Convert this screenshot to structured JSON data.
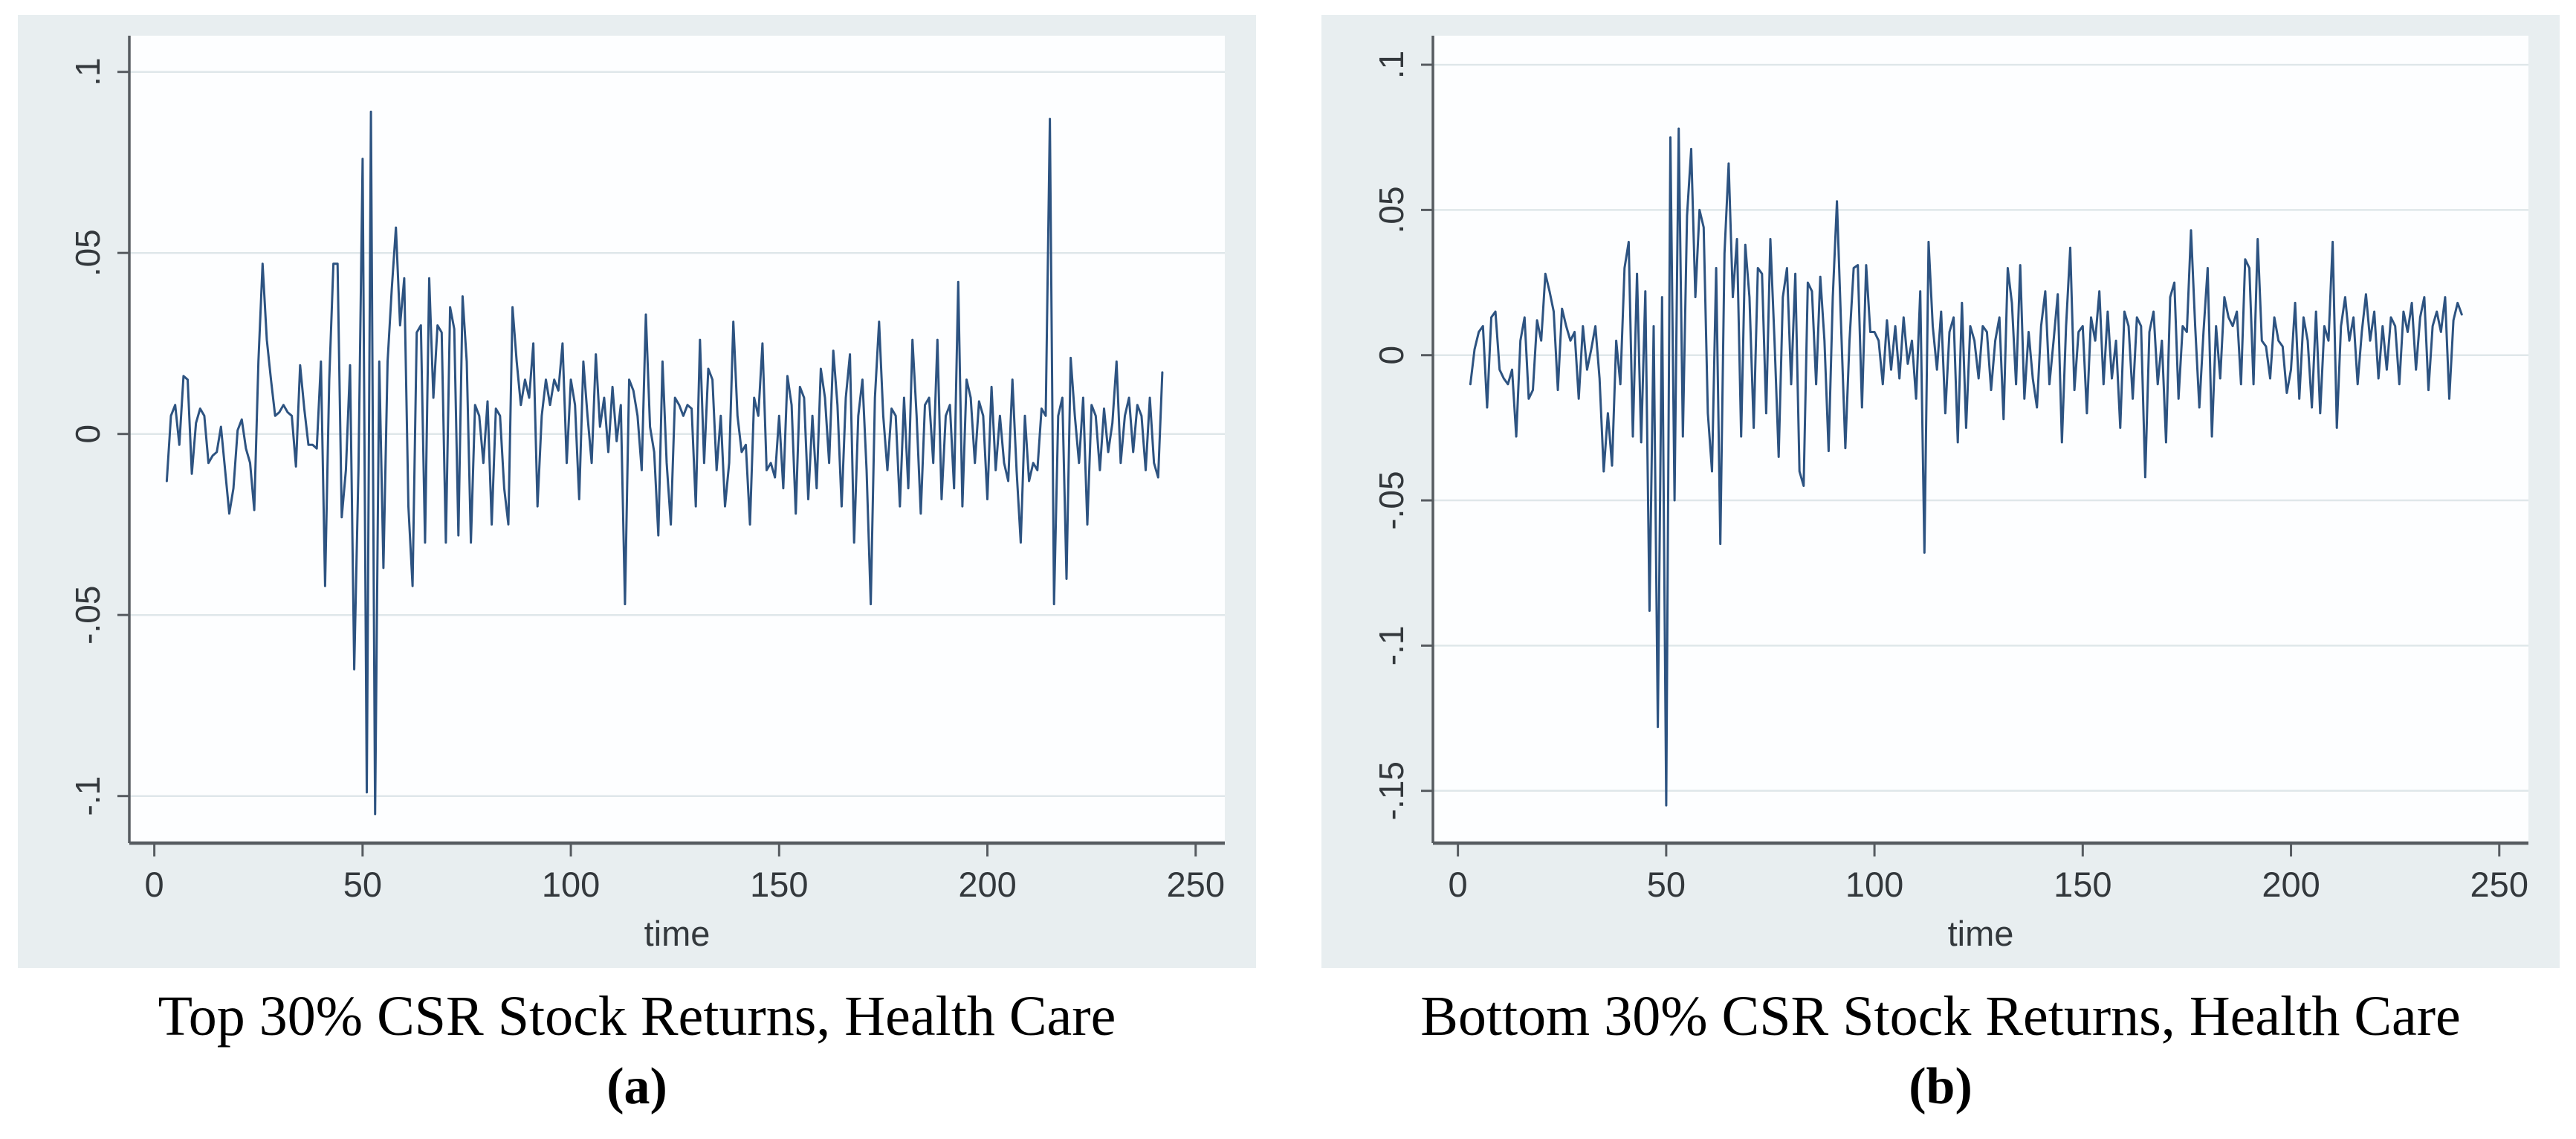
{
  "figure": {
    "panels": [
      {
        "caption": "Top 30% CSR Stock Returns, Health Care",
        "label": "(a)"
      },
      {
        "caption": "Bottom 30% CSR Stock Returns, Health Care",
        "label": "(b)"
      }
    ]
  },
  "colors": {
    "panel_bg": "#e8eef0",
    "plot_bg": "#fdfeff",
    "grid": "#dfe7ea",
    "axis": "#565b60",
    "tick_text": "#33383c",
    "line": "#2d5381"
  },
  "chart_data": [
    {
      "type": "line",
      "title": "Top 30% CSR Stock Returns, Health Care",
      "xlabel": "time",
      "ylabel": "",
      "legend": "none",
      "grid": "horizontal",
      "xlim": [
        -6,
        257
      ],
      "ylim": [
        -0.113,
        0.11
      ],
      "xticks": [
        0,
        50,
        100,
        150,
        200,
        250
      ],
      "ytick_values": [
        0.1,
        0.05,
        0,
        -0.05,
        -0.1
      ],
      "ytick_labels": [
        ".1",
        ".05",
        "0",
        "-.05",
        "-.1"
      ],
      "x_start": 3,
      "x_step": 1,
      "values": [
        -0.013,
        0.005,
        0.008,
        -0.003,
        0.016,
        0.015,
        -0.011,
        0.003,
        0.007,
        0.005,
        -0.008,
        -0.006,
        -0.005,
        0.002,
        -0.01,
        -0.022,
        -0.015,
        0.001,
        0.004,
        -0.004,
        -0.008,
        -0.021,
        0.02,
        0.047,
        0.026,
        0.015,
        0.005,
        0.006,
        0.008,
        0.006,
        0.005,
        -0.009,
        0.019,
        0.007,
        -0.003,
        -0.003,
        -0.004,
        0.02,
        -0.042,
        0.015,
        0.047,
        0.047,
        -0.023,
        -0.01,
        0.019,
        -0.065,
        -0.01,
        0.076,
        -0.099,
        0.089,
        -0.105,
        0.02,
        -0.037,
        0.02,
        0.04,
        0.057,
        0.03,
        0.043,
        -0.02,
        -0.042,
        0.028,
        0.03,
        -0.03,
        0.043,
        0.01,
        0.03,
        0.028,
        -0.03,
        0.035,
        0.029,
        -0.028,
        0.038,
        0.02,
        -0.03,
        0.008,
        0.005,
        -0.008,
        0.009,
        -0.025,
        0.007,
        0.005,
        -0.015,
        -0.025,
        0.035,
        0.02,
        0.008,
        0.015,
        0.01,
        0.025,
        -0.02,
        0.005,
        0.015,
        0.008,
        0.015,
        0.012,
        0.025,
        -0.008,
        0.015,
        0.008,
        -0.018,
        0.02,
        0.005,
        -0.008,
        0.022,
        0.002,
        0.01,
        -0.005,
        0.013,
        -0.002,
        0.008,
        -0.047,
        0.015,
        0.012,
        0.005,
        -0.01,
        0.033,
        0.002,
        -0.005,
        -0.028,
        0.02,
        -0.008,
        -0.025,
        0.01,
        0.008,
        0.005,
        0.008,
        0.007,
        -0.02,
        0.026,
        -0.008,
        0.018,
        0.015,
        -0.01,
        0.005,
        -0.02,
        -0.008,
        0.031,
        0.005,
        -0.005,
        -0.003,
        -0.025,
        0.01,
        0.005,
        0.025,
        -0.01,
        -0.008,
        -0.012,
        0.005,
        -0.015,
        0.016,
        0.008,
        -0.022,
        0.013,
        0.01,
        -0.018,
        0.005,
        -0.015,
        0.018,
        0.01,
        -0.008,
        0.023,
        0.008,
        -0.02,
        0.01,
        0.022,
        -0.03,
        0.005,
        0.015,
        -0.01,
        -0.047,
        0.01,
        0.031,
        0.005,
        -0.01,
        0.007,
        0.005,
        -0.02,
        0.01,
        -0.015,
        0.026,
        0.005,
        -0.022,
        0.008,
        0.01,
        -0.008,
        0.026,
        -0.018,
        0.005,
        0.008,
        -0.015,
        0.042,
        -0.02,
        0.015,
        0.01,
        -0.008,
        0.009,
        0.005,
        -0.018,
        0.013,
        -0.01,
        0.005,
        -0.008,
        -0.013,
        0.015,
        -0.01,
        -0.03,
        0.005,
        -0.013,
        -0.008,
        -0.01,
        0.007,
        0.005,
        0.087,
        -0.047,
        0.005,
        0.01,
        -0.04,
        0.021,
        0.005,
        -0.008,
        0.01,
        -0.025,
        0.008,
        0.005,
        -0.01,
        0.007,
        -0.005,
        0.003,
        0.02,
        -0.008,
        0.005,
        0.01,
        -0.005,
        0.008,
        0.005,
        -0.01,
        0.01,
        -0.008,
        -0.012,
        0.017
      ]
    },
    {
      "type": "line",
      "title": "Bottom 30% CSR Stock Returns, Health Care",
      "xlabel": "time",
      "ylabel": "",
      "legend": "none",
      "grid": "horizontal",
      "xlim": [
        -6,
        257
      ],
      "ylim": [
        -0.168,
        0.11
      ],
      "xticks": [
        0,
        50,
        100,
        150,
        200,
        250
      ],
      "ytick_values": [
        0.1,
        0.05,
        0,
        -0.05,
        -0.1,
        -0.15
      ],
      "ytick_labels": [
        ".1",
        ".05",
        "0",
        "-.05",
        "-.1",
        "-.15"
      ],
      "x_start": 3,
      "x_step": 1,
      "values": [
        -0.01,
        0.002,
        0.008,
        0.01,
        -0.018,
        0.013,
        0.015,
        -0.005,
        -0.008,
        -0.01,
        -0.005,
        -0.028,
        0.005,
        0.013,
        -0.015,
        -0.012,
        0.012,
        0.005,
        0.028,
        0.022,
        0.015,
        -0.012,
        0.016,
        0.01,
        0.005,
        0.008,
        -0.015,
        0.01,
        -0.005,
        0.002,
        0.01,
        -0.008,
        -0.04,
        -0.02,
        -0.038,
        0.005,
        -0.01,
        0.03,
        0.039,
        -0.028,
        0.028,
        -0.03,
        0.022,
        -0.088,
        0.01,
        -0.128,
        0.02,
        -0.155,
        0.075,
        -0.05,
        0.078,
        -0.028,
        0.048,
        0.071,
        0.02,
        0.05,
        0.044,
        -0.02,
        -0.04,
        0.03,
        -0.065,
        0.035,
        0.066,
        0.02,
        0.04,
        -0.028,
        0.038,
        0.02,
        -0.025,
        0.03,
        0.028,
        -0.02,
        0.04,
        0.005,
        -0.035,
        0.02,
        0.03,
        -0.01,
        0.028,
        -0.04,
        -0.045,
        0.025,
        0.022,
        -0.01,
        0.027,
        0.005,
        -0.033,
        0.02,
        0.053,
        0.01,
        -0.032,
        0.005,
        0.03,
        0.031,
        -0.018,
        0.031,
        0.008,
        0.008,
        0.005,
        -0.01,
        0.012,
        -0.005,
        0.01,
        -0.008,
        0.013,
        -0.003,
        0.005,
        -0.015,
        0.022,
        -0.068,
        0.039,
        0.01,
        -0.005,
        0.015,
        -0.02,
        0.008,
        0.013,
        -0.03,
        0.018,
        -0.025,
        0.01,
        0.005,
        -0.008,
        0.01,
        0.008,
        -0.012,
        0.005,
        0.013,
        -0.022,
        0.03,
        0.018,
        -0.01,
        0.031,
        -0.015,
        0.008,
        -0.008,
        -0.018,
        0.01,
        0.022,
        -0.01,
        0.005,
        0.021,
        -0.03,
        0.01,
        0.037,
        -0.012,
        0.008,
        0.01,
        -0.02,
        0.013,
        0.005,
        0.022,
        -0.01,
        0.015,
        -0.008,
        0.005,
        -0.025,
        0.015,
        0.01,
        -0.015,
        0.013,
        0.01,
        -0.042,
        0.008,
        0.015,
        -0.01,
        0.005,
        -0.03,
        0.02,
        0.025,
        -0.015,
        0.01,
        0.008,
        0.043,
        0.01,
        -0.018,
        0.008,
        0.03,
        -0.028,
        0.01,
        -0.008,
        0.02,
        0.013,
        0.01,
        0.015,
        -0.01,
        0.033,
        0.03,
        -0.01,
        0.04,
        0.005,
        0.003,
        -0.008,
        0.013,
        0.005,
        0.003,
        -0.013,
        -0.005,
        0.018,
        -0.015,
        0.013,
        0.005,
        -0.018,
        0.015,
        -0.02,
        0.01,
        0.005,
        0.039,
        -0.025,
        0.01,
        0.02,
        0.005,
        0.013,
        -0.01,
        0.008,
        0.021,
        0.005,
        0.015,
        -0.008,
        0.01,
        -0.005,
        0.013,
        0.01,
        -0.01,
        0.015,
        0.008,
        0.018,
        -0.005,
        0.013,
        0.02,
        -0.012,
        0.01,
        0.015,
        0.008,
        0.02,
        -0.015,
        0.012,
        0.018,
        0.014
      ]
    }
  ]
}
